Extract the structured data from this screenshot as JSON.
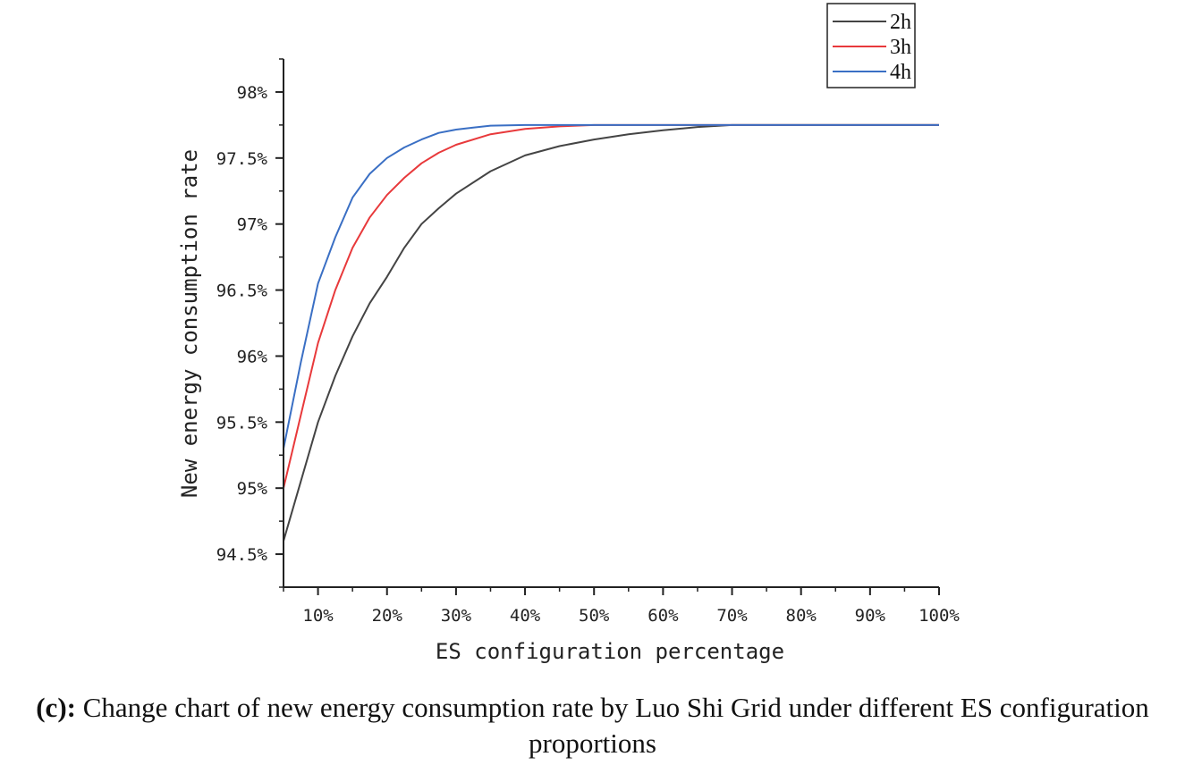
{
  "chart_data": {
    "type": "line",
    "xlabel": "ES configuration percentage",
    "ylabel": "New energy consumption rate",
    "xlim": [
      5,
      100
    ],
    "ylim": [
      94.25,
      98.25
    ],
    "x_ticks": [
      10,
      20,
      30,
      40,
      50,
      60,
      70,
      80,
      90,
      100
    ],
    "x_tick_labels": [
      "10%",
      "20%",
      "30%",
      "40%",
      "50%",
      "60%",
      "70%",
      "80%",
      "90%",
      "100%"
    ],
    "y_ticks": [
      94.5,
      95,
      95.5,
      96,
      96.5,
      97,
      97.5,
      98
    ],
    "y_tick_labels": [
      "94.5%",
      "95%",
      "95.5%",
      "96%",
      "96.5%",
      "97%",
      "97.5%",
      "98%"
    ],
    "grid": false,
    "legend_position": "top-right",
    "series": [
      {
        "name": "2h",
        "color": "#444444",
        "x": [
          5,
          7.5,
          10,
          12.5,
          15,
          17.5,
          20,
          22.5,
          25,
          27.5,
          30,
          35,
          40,
          45,
          50,
          55,
          60,
          65,
          70,
          75,
          80,
          90,
          100
        ],
        "y": [
          94.6,
          95.05,
          95.5,
          95.85,
          96.15,
          96.4,
          96.6,
          96.82,
          97.0,
          97.12,
          97.23,
          97.4,
          97.52,
          97.59,
          97.64,
          97.68,
          97.71,
          97.735,
          97.75,
          97.75,
          97.75,
          97.75,
          97.75
        ]
      },
      {
        "name": "3h",
        "color": "#e8393b",
        "x": [
          5,
          7.5,
          10,
          12.5,
          15,
          17.5,
          20,
          22.5,
          25,
          27.5,
          30,
          35,
          40,
          45,
          50,
          55,
          60,
          70,
          80,
          90,
          100
        ],
        "y": [
          95.0,
          95.55,
          96.1,
          96.5,
          96.82,
          97.05,
          97.22,
          97.35,
          97.46,
          97.54,
          97.6,
          97.68,
          97.72,
          97.74,
          97.75,
          97.75,
          97.75,
          97.75,
          97.75,
          97.75,
          97.75
        ]
      },
      {
        "name": "4h",
        "color": "#3a6fc4",
        "x": [
          5,
          7.5,
          10,
          12.5,
          15,
          17.5,
          20,
          22.5,
          25,
          27.5,
          30,
          32.5,
          35,
          40,
          45,
          50,
          60,
          70,
          80,
          90,
          100
        ],
        "y": [
          95.3,
          95.95,
          96.55,
          96.9,
          97.2,
          97.38,
          97.5,
          97.58,
          97.64,
          97.69,
          97.715,
          97.73,
          97.745,
          97.75,
          97.75,
          97.75,
          97.75,
          97.75,
          97.75,
          97.75,
          97.75
        ]
      }
    ]
  },
  "caption": {
    "prefix": "(c):",
    "text": " Change chart of new energy consumption rate by Luo Shi Grid under different ES configuration proportions"
  }
}
